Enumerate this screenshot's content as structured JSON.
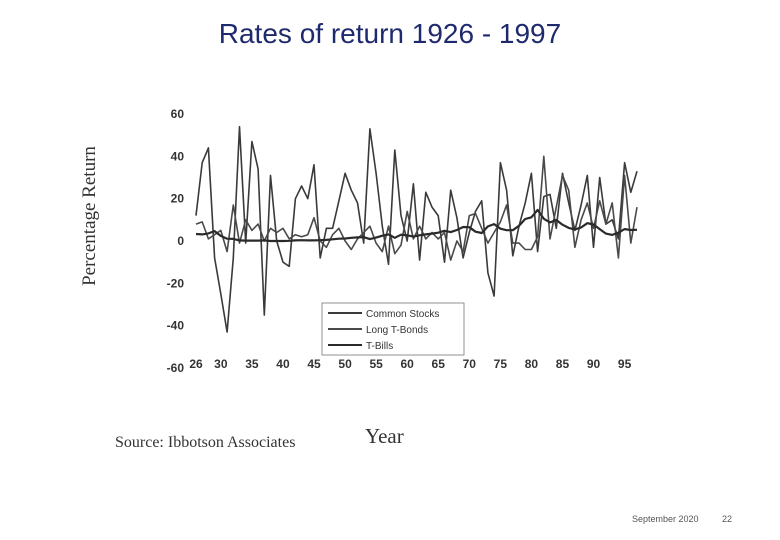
{
  "slide": {
    "title": "Rates of return 1926 - 1997",
    "source": "Source: Ibbotson Associates",
    "footer_date": "September 2020",
    "footer_page": "22"
  },
  "chart_data": {
    "type": "line",
    "title": "",
    "xlabel": "Year",
    "ylabel": "Percentage Return",
    "xlim": [
      1926,
      1997
    ],
    "ylim": [
      -60,
      60
    ],
    "x_ticks": [
      26,
      30,
      35,
      40,
      45,
      50,
      55,
      60,
      65,
      70,
      75,
      80,
      85,
      90,
      95
    ],
    "y_ticks": [
      60,
      40,
      20,
      0,
      -20,
      -40,
      -60
    ],
    "grid": false,
    "legend": {
      "placement": "bottom-center",
      "entries": [
        "Common Stocks",
        "Long T-Bonds",
        "T-Bills"
      ]
    },
    "x": [
      1926,
      1927,
      1928,
      1929,
      1930,
      1931,
      1932,
      1933,
      1934,
      1935,
      1936,
      1937,
      1938,
      1939,
      1940,
      1941,
      1942,
      1943,
      1944,
      1945,
      1946,
      1947,
      1948,
      1949,
      1950,
      1951,
      1952,
      1953,
      1954,
      1955,
      1956,
      1957,
      1958,
      1959,
      1960,
      1961,
      1962,
      1963,
      1964,
      1965,
      1966,
      1967,
      1968,
      1969,
      1970,
      1971,
      1972,
      1973,
      1974,
      1975,
      1976,
      1977,
      1978,
      1979,
      1980,
      1981,
      1982,
      1983,
      1984,
      1985,
      1986,
      1987,
      1988,
      1989,
      1990,
      1991,
      1992,
      1993,
      1994,
      1995,
      1996,
      1997
    ],
    "series": [
      {
        "name": "Common Stocks",
        "color": "#3a3a3a",
        "values": [
          12,
          37,
          44,
          -8,
          -25,
          -43,
          -8,
          54,
          -1,
          47,
          34,
          -35,
          31,
          0,
          -10,
          -12,
          20,
          26,
          20,
          36,
          -8,
          6,
          6,
          19,
          32,
          24,
          18,
          -1,
          53,
          32,
          7,
          -11,
          43,
          12,
          0,
          27,
          -9,
          23,
          16,
          12,
          -10,
          24,
          11,
          -8,
          4,
          14,
          19,
          -15,
          -26,
          37,
          24,
          -7,
          7,
          18,
          32,
          -5,
          21,
          22,
          6,
          32,
          18,
          5,
          17,
          31,
          -3,
          30,
          8,
          10,
          1,
          37,
          23,
          33
        ]
      },
      {
        "name": "Long T-Bonds",
        "color": "#4a4a4a",
        "values": [
          8,
          9,
          1,
          3,
          5,
          -5,
          17,
          -1,
          10,
          5,
          8,
          0,
          6,
          4,
          6,
          1,
          3,
          2,
          3,
          11,
          0,
          -3,
          3,
          6,
          0,
          -4,
          1,
          4,
          7,
          -1,
          -5,
          7,
          -6,
          -2,
          14,
          1,
          7,
          1,
          4,
          1,
          4,
          -9,
          0,
          -5,
          12,
          13,
          6,
          -1,
          4,
          9,
          17,
          -1,
          -1,
          -4,
          -4,
          2,
          40,
          1,
          16,
          31,
          24,
          -3,
          10,
          18,
          6,
          19,
          8,
          18,
          -8,
          31,
          -1,
          16
        ]
      },
      {
        "name": "T-Bills",
        "color": "#2a2a2a",
        "values": [
          3.3,
          3.1,
          3.6,
          4.7,
          2.4,
          1.1,
          1.0,
          0.3,
          0.2,
          0.2,
          0.2,
          0.3,
          0,
          0,
          0,
          0.1,
          0.3,
          0.4,
          0.3,
          0.3,
          0.4,
          0.5,
          0.8,
          1.1,
          1.2,
          1.5,
          1.7,
          1.8,
          0.9,
          1.6,
          2.5,
          3.1,
          1.5,
          3.0,
          2.7,
          2.1,
          2.7,
          3.1,
          3.5,
          3.9,
          4.8,
          4.2,
          5.2,
          6.6,
          6.5,
          4.4,
          3.8,
          6.9,
          8.0,
          5.8,
          5.1,
          5.1,
          7.2,
          10.4,
          11.2,
          14.7,
          10.5,
          8.8,
          9.9,
          7.7,
          6.2,
          5.5,
          6.4,
          8.4,
          7.8,
          5.6,
          3.5,
          2.9,
          3.9,
          5.6,
          5.2,
          5.3
        ]
      }
    ]
  }
}
